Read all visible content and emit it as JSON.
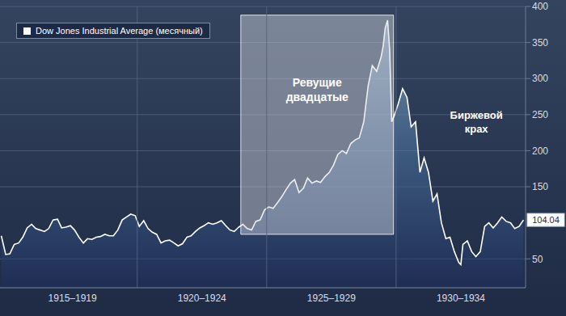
{
  "chart_data": {
    "type": "area",
    "legend": "upper left",
    "grid": true,
    "x": [
      1914.75,
      1914.92,
      1915.08,
      1915.25,
      1915.42,
      1915.58,
      1915.75,
      1915.92,
      1916.08,
      1916.25,
      1916.42,
      1916.58,
      1916.75,
      1916.92,
      1917.08,
      1917.25,
      1917.42,
      1917.58,
      1917.75,
      1917.92,
      1918.08,
      1918.25,
      1918.42,
      1918.58,
      1918.75,
      1918.92,
      1919.08,
      1919.25,
      1919.42,
      1919.58,
      1919.75,
      1919.92,
      1920.08,
      1920.25,
      1920.42,
      1920.58,
      1920.75,
      1920.92,
      1921.08,
      1921.25,
      1921.42,
      1921.58,
      1921.75,
      1921.92,
      1922.08,
      1922.25,
      1922.42,
      1922.58,
      1922.75,
      1922.92,
      1923.08,
      1923.25,
      1923.42,
      1923.58,
      1923.75,
      1923.92,
      1924.08,
      1924.25,
      1924.42,
      1924.58,
      1924.75,
      1924.92,
      1925.08,
      1925.25,
      1925.42,
      1925.58,
      1925.75,
      1925.92,
      1926.08,
      1926.25,
      1926.42,
      1926.58,
      1926.75,
      1926.92,
      1927.08,
      1927.25,
      1927.42,
      1927.58,
      1927.75,
      1927.92,
      1928.08,
      1928.25,
      1928.42,
      1928.58,
      1928.75,
      1928.92,
      1929.08,
      1929.25,
      1929.42,
      1929.5,
      1929.58,
      1929.67,
      1929.75,
      1929.83,
      1929.92,
      1930.08,
      1930.25,
      1930.42,
      1930.58,
      1930.75,
      1930.92,
      1931.08,
      1931.25,
      1931.42,
      1931.58,
      1931.75,
      1931.92,
      1932.08,
      1932.25,
      1932.42,
      1932.5,
      1932.58,
      1932.75,
      1932.92,
      1933.08,
      1933.25,
      1933.42,
      1933.58,
      1933.75,
      1933.92,
      1934.08,
      1934.25,
      1934.42,
      1934.58,
      1934.75,
      1934.92
    ],
    "series": [
      {
        "name": "Dow Jones Industrial Average (месячный)",
        "color": "#ffffff",
        "values": [
          82,
          56,
          57,
          70,
          72,
          80,
          93,
          98,
          92,
          90,
          88,
          92,
          104,
          105,
          93,
          94,
          96,
          90,
          80,
          72,
          78,
          77,
          80,
          81,
          84,
          82,
          82,
          90,
          104,
          108,
          112,
          110,
          95,
          103,
          92,
          87,
          84,
          72,
          75,
          76,
          72,
          68,
          71,
          80,
          82,
          88,
          93,
          96,
          100,
          98,
          100,
          103,
          96,
          90,
          88,
          94,
          98,
          92,
          90,
          102,
          104,
          118,
          122,
          120,
          128,
          136,
          146,
          155,
          160,
          142,
          148,
          162,
          155,
          158,
          156,
          164,
          170,
          180,
          195,
          200,
          196,
          210,
          215,
          218,
          240,
          290,
          318,
          310,
          330,
          345,
          370,
          381,
          340,
          240,
          248,
          265,
          286,
          274,
          233,
          240,
          170,
          190,
          170,
          130,
          140,
          100,
          78,
          80,
          60,
          45,
          42,
          70,
          75,
          60,
          53,
          60,
          95,
          100,
          93,
          100,
          108,
          102,
          100,
          92,
          95,
          104.04
        ]
      }
    ],
    "xlim": [
      1914.7,
      1935.0
    ],
    "xticks": [
      {
        "value": 1917.5,
        "label": "1915–1919"
      },
      {
        "value": 1922.5,
        "label": "1920–1924"
      },
      {
        "value": 1927.5,
        "label": "1925–1929"
      },
      {
        "value": 1932.5,
        "label": "1930–1934"
      }
    ],
    "ylim": [
      10,
      400
    ],
    "yticks": [
      50,
      150,
      200,
      250,
      300,
      350,
      400
    ],
    "annotations": [
      {
        "text": [
          "Ревущие",
          "двадцатые"
        ],
        "x1": 1924.0,
        "x2": 1929.9,
        "y1": 84,
        "y2": 388
      },
      {
        "text": [
          "Биржевой",
          "крах"
        ],
        "x": 1933.1,
        "y": 244
      },
      {
        "text": "104.04",
        "x": 1935.0,
        "y": 104.04
      }
    ]
  }
}
